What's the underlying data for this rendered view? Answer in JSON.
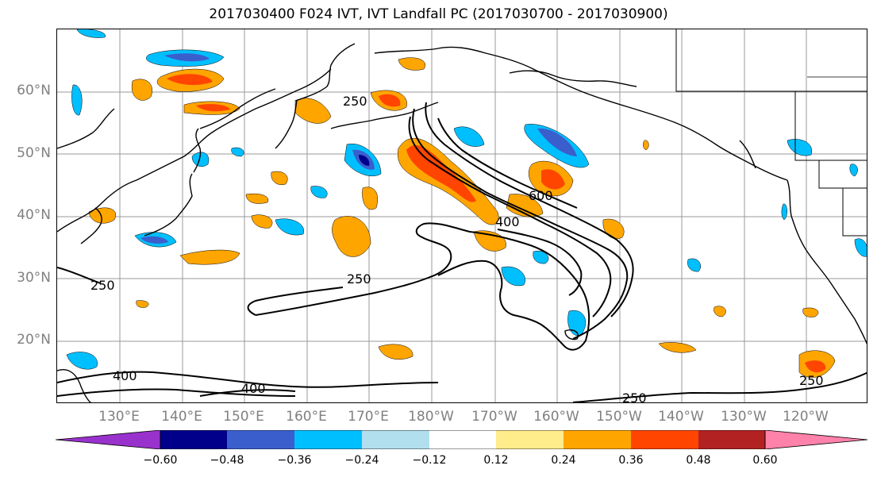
{
  "title": "2017030400 F024 IVT, IVT Landfall PC (2017030700 - 2017030900)",
  "lat_labels": [
    "60°N",
    "50°N",
    "40°N",
    "30°N",
    "20°N"
  ],
  "lon_labels": [
    "130°E",
    "140°E",
    "150°E",
    "160°E",
    "170°E",
    "180°W",
    "170°W",
    "160°W",
    "150°W",
    "140°W",
    "130°W",
    "120°W"
  ],
  "contour_labels": [
    "250",
    "600",
    "400",
    "250",
    "250",
    "400",
    "400",
    "250",
    "250"
  ],
  "colorbar": {
    "ticks": [
      "−0.60",
      "−0.48",
      "−0.36",
      "−0.24",
      "−0.12",
      "0.12",
      "0.24",
      "0.36",
      "0.48",
      "0.60"
    ],
    "colors": [
      "#9932cc",
      "#00008b",
      "#3a5fcd",
      "#00bfff",
      "#b2dfee",
      "#ffffff",
      "#ffec8b",
      "#ffa500",
      "#ff4500",
      "#b22222",
      "#ff82ab"
    ]
  },
  "colors": {
    "positive_light": "#ffec8b",
    "positive": "#ffa500",
    "positive_strong": "#ff4500",
    "negative_light": "#b2dfee",
    "negative": "#00bfff",
    "negative_strong": "#3a5fcd"
  }
}
